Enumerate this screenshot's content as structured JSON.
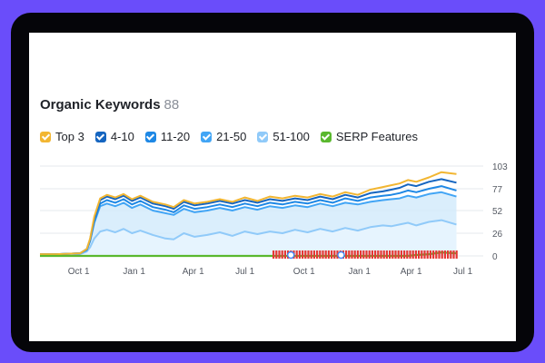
{
  "widget": {
    "title": "Organic Keywords",
    "count": "88"
  },
  "legend": [
    {
      "label": "Top 3",
      "color": "#f2b632"
    },
    {
      "label": "4-10",
      "color": "#1565c0"
    },
    {
      "label": "11-20",
      "color": "#1e88e5"
    },
    {
      "label": "21-50",
      "color": "#42a5f5"
    },
    {
      "label": "51-100",
      "color": "#90caf9"
    },
    {
      "label": "SERP Features",
      "color": "#5ab82e"
    }
  ],
  "chart_data": {
    "type": "area",
    "x_tick_labels": [
      "Oct 1",
      "Jan 1",
      "Apr 1",
      "Jul 1",
      "Oct 1",
      "Jan 1",
      "Apr 1",
      "Jul 1"
    ],
    "y_tick_labels": [
      "103",
      "77",
      "52",
      "26",
      "0"
    ],
    "ylim": [
      0,
      103
    ],
    "x": [
      0,
      0.2,
      0.48,
      0.56,
      0.6,
      0.65,
      0.72,
      0.8,
      0.9,
      1.0,
      1.1,
      1.2,
      1.35,
      1.5,
      1.6,
      1.72,
      1.85,
      2.0,
      2.15,
      2.3,
      2.45,
      2.6,
      2.75,
      2.9,
      3.05,
      3.2,
      3.35,
      3.5,
      3.65,
      3.8,
      3.95,
      4.1,
      4.2,
      4.3,
      4.4,
      4.5,
      4.65,
      4.8,
      4.98
    ],
    "series": [
      {
        "name": "Top 3",
        "color": "#f2b632",
        "values": [
          2,
          2,
          3,
          8,
          20,
          45,
          66,
          70,
          67,
          71,
          65,
          69,
          62,
          59,
          56,
          64,
          60,
          62,
          65,
          62,
          67,
          63,
          68,
          66,
          69,
          67,
          71,
          68,
          73,
          70,
          76,
          79,
          81,
          83,
          87,
          85,
          90,
          96,
          94
        ]
      },
      {
        "name": "4-10",
        "color": "#1565c0",
        "values": [
          2,
          2,
          3,
          8,
          19,
          43,
          64,
          68,
          65,
          69,
          63,
          67,
          60,
          57,
          54,
          62,
          58,
          60,
          63,
          60,
          64,
          61,
          65,
          63,
          66,
          64,
          68,
          65,
          70,
          67,
          72,
          74,
          76,
          78,
          82,
          80,
          85,
          88,
          84
        ]
      },
      {
        "name": "11-20",
        "color": "#1e88e5",
        "values": [
          2,
          2,
          3,
          7,
          18,
          40,
          60,
          64,
          61,
          65,
          59,
          63,
          56,
          53,
          50,
          58,
          54,
          56,
          59,
          56,
          60,
          57,
          61,
          59,
          62,
          60,
          64,
          61,
          66,
          63,
          67,
          69,
          70,
          72,
          75,
          73,
          77,
          80,
          75
        ]
      },
      {
        "name": "21-50",
        "color": "#42a5f5",
        "values": [
          2,
          2,
          3,
          7,
          17,
          38,
          57,
          60,
          57,
          61,
          55,
          59,
          52,
          49,
          47,
          54,
          50,
          52,
          55,
          52,
          56,
          53,
          57,
          55,
          58,
          56,
          60,
          57,
          61,
          59,
          62,
          64,
          65,
          66,
          69,
          67,
          71,
          73,
          68
        ]
      },
      {
        "name": "51-100",
        "color": "#90caf9",
        "values": [
          1,
          1,
          2,
          5,
          10,
          20,
          28,
          30,
          27,
          31,
          26,
          29,
          24,
          20,
          19,
          26,
          22,
          24,
          27,
          23,
          28,
          25,
          28,
          26,
          30,
          27,
          31,
          28,
          32,
          29,
          33,
          35,
          34,
          36,
          38,
          35,
          39,
          41,
          36
        ]
      },
      {
        "name": "SERP Features",
        "color": "#5ab82e",
        "values": [
          0,
          0,
          0,
          0,
          0,
          0,
          0,
          0,
          0,
          0,
          0,
          0,
          0,
          0,
          0,
          0,
          0,
          0,
          0,
          0,
          0,
          0,
          0,
          0,
          0,
          0,
          0,
          0,
          0,
          0,
          0,
          0,
          0,
          0,
          0,
          1,
          2,
          4,
          3
        ]
      }
    ]
  }
}
